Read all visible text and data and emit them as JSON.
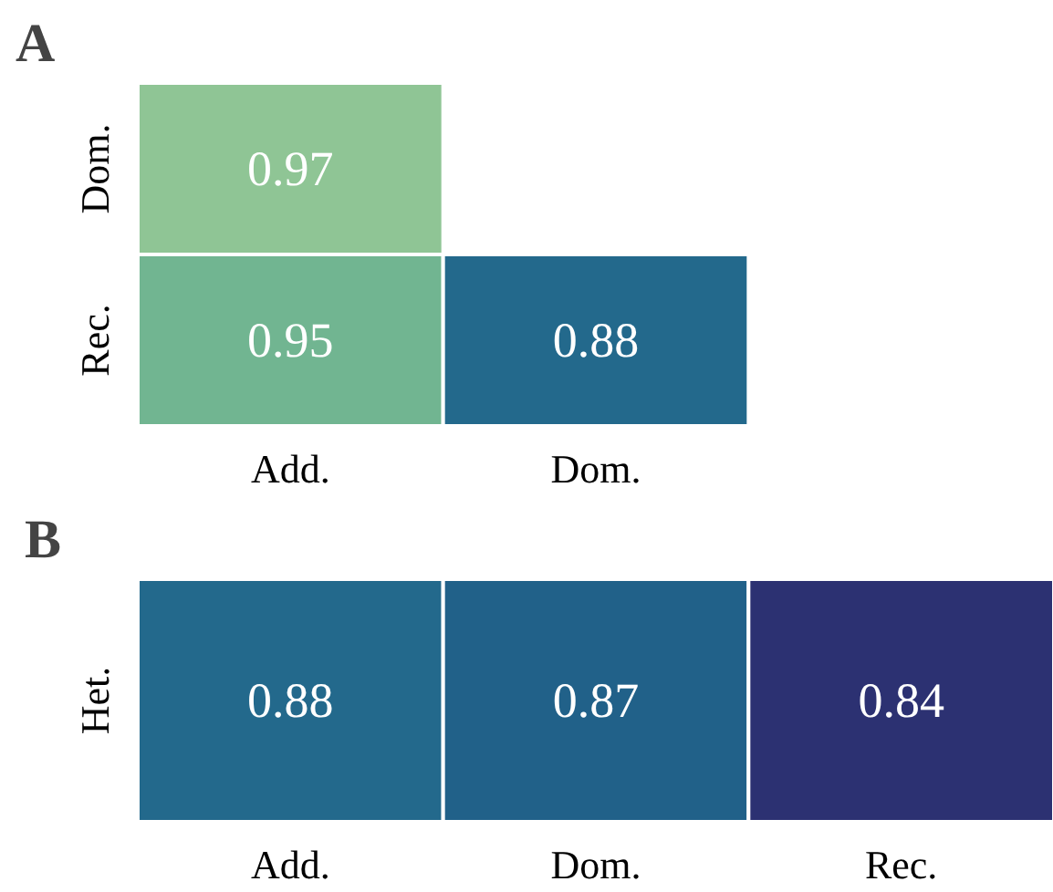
{
  "chart_data": [
    {
      "type": "heatmap",
      "title": "A",
      "categories": [
        "Add.",
        "Dom."
      ],
      "y_categories": [
        "Dom.",
        "Rec."
      ],
      "cells": [
        [
          0.97,
          null
        ],
        [
          0.95,
          0.88
        ]
      ],
      "data_labels": true
    },
    {
      "type": "heatmap",
      "title": "B",
      "categories": [
        "Add.",
        "Dom.",
        "Rec."
      ],
      "y_categories": [
        "Het."
      ],
      "cells": [
        [
          0.88,
          0.87,
          0.84
        ]
      ],
      "data_labels": true
    }
  ]
}
